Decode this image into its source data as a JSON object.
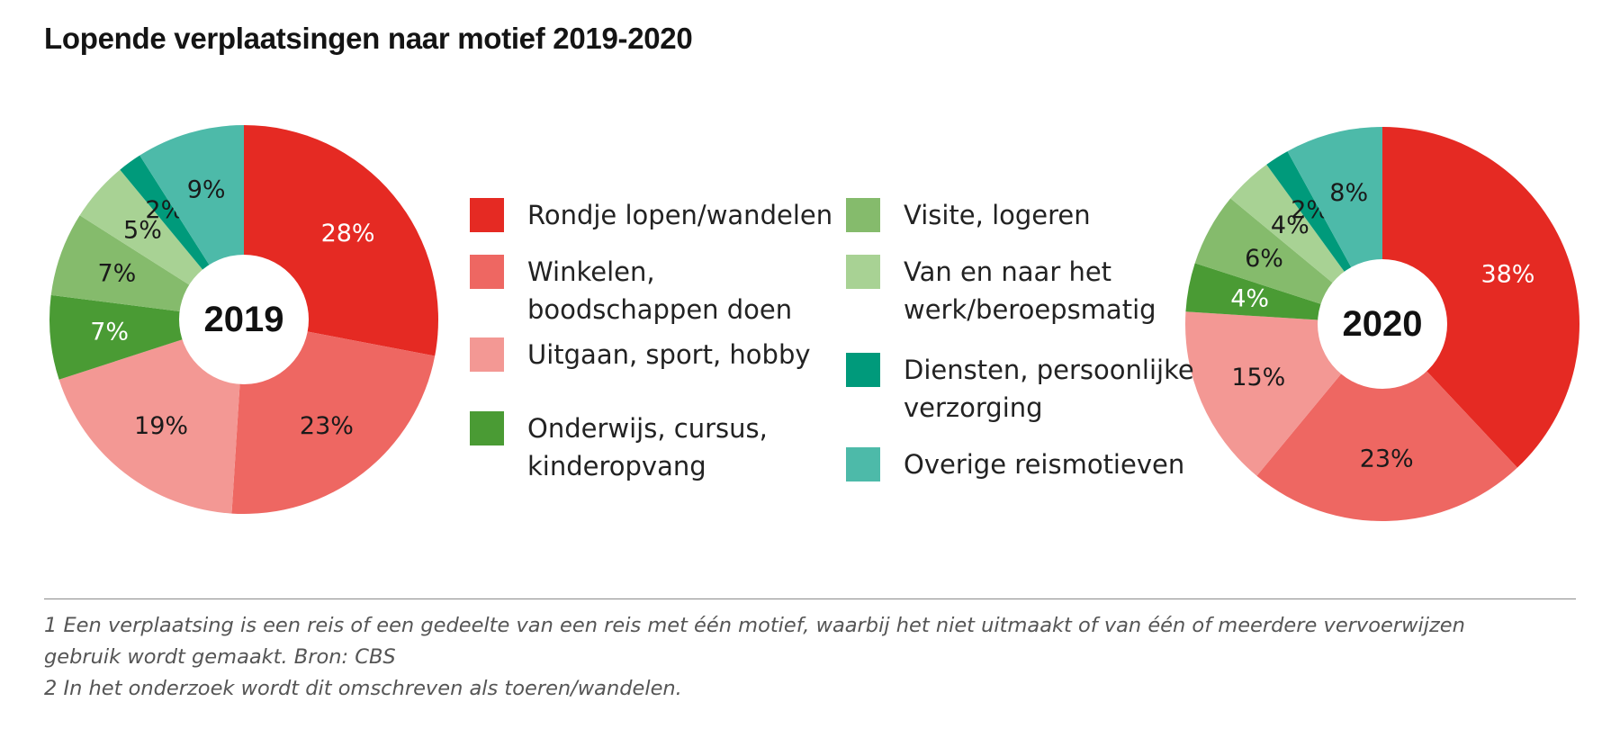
{
  "title": "Lopende verplaatsingen naar motief 2019-2020",
  "chart_data": [
    {
      "type": "pie",
      "center_label": "2019",
      "categories": [
        "Rondje lopen/wandelen",
        "Winkelen, boodschappen doen",
        "Uitgaan, sport, hobby",
        "Onderwijs, cursus, kinderopvang",
        "Visite, logeren",
        "Van en naar het werk/beroepsmatig",
        "Diensten, persoonlijke verzorging",
        "Overige reismotieven"
      ],
      "values": [
        28,
        23,
        19,
        7,
        7,
        5,
        2,
        9
      ],
      "labels": [
        "28%",
        "23%",
        "19%",
        "7%",
        "7%",
        "5%",
        "2%",
        "9%"
      ]
    },
    {
      "type": "pie",
      "center_label": "2020",
      "categories": [
        "Rondje lopen/wandelen",
        "Winkelen, boodschappen doen",
        "Uitgaan, sport, hobby",
        "Onderwijs, cursus, kinderopvang",
        "Visite, logeren",
        "Van en naar het werk/beroepsmatig",
        "Diensten, persoonlijke verzorging",
        "Overige reismotieven"
      ],
      "values": [
        38,
        23,
        15,
        4,
        6,
        4,
        2,
        8
      ],
      "labels": [
        "38%",
        "23%",
        "15%",
        "4%",
        "6%",
        "4%",
        "2%",
        "8%"
      ]
    }
  ],
  "legend": [
    {
      "lines": [
        "Rondje lopen/wandelen"
      ],
      "color": "#e52a23"
    },
    {
      "lines": [
        "Winkelen,",
        "boodschappen doen"
      ],
      "color": "#ee6762"
    },
    {
      "lines": [
        "Uitgaan, sport, hobby"
      ],
      "color": "#f39894"
    },
    {
      "lines": [
        "Onderwijs, cursus,",
        "kinderopvang"
      ],
      "color": "#4a9b34"
    },
    {
      "lines": [
        "Visite, logeren"
      ],
      "color": "#85bb6c"
    },
    {
      "lines": [
        "Van en naar het",
        "werk/beroepsmatig"
      ],
      "color": "#a8d294"
    },
    {
      "lines": [
        "Diensten, persoonlijke",
        "verzorging"
      ],
      "color": "#009a7b"
    },
    {
      "lines": [
        "Overige reismotieven"
      ],
      "color": "#4dbaa9"
    }
  ],
  "label_colors": [
    "#ffffff",
    "#1a1a1a",
    "#1a1a1a",
    "#ffffff",
    "#1a1a1a",
    "#1a1a1a",
    "#1a1a1a",
    "#1a1a1a"
  ],
  "footnotes": [
    "1 Een verplaatsing is een reis of een gedeelte van een reis met één motief, waarbij het niet uitmaakt of van één of meerdere vervoerwijzen",
    "gebruik wordt gemaakt. Bron: CBS",
    "2 In het onderzoek wordt dit omschreven als toeren/wandelen."
  ]
}
